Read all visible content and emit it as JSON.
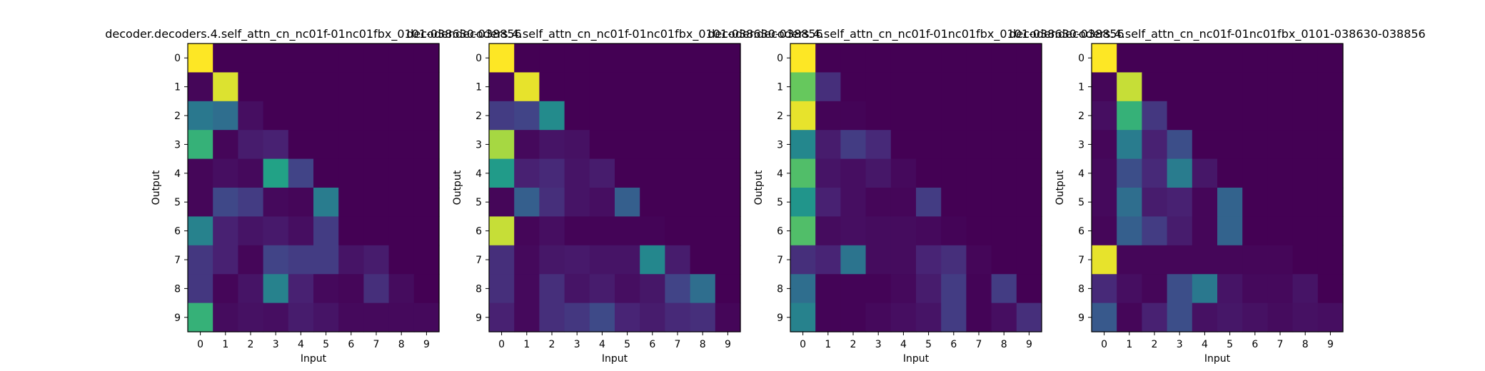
{
  "chart_data": [
    {
      "type": "heatmap",
      "title": "decoder.decoders.4.self_attn_cn_nc01f-01nc01fbx_0101-038630-038856",
      "xlabel": "Input",
      "ylabel": "Output",
      "x_ticks": [
        "0",
        "1",
        "2",
        "3",
        "4",
        "5",
        "6",
        "7",
        "8",
        "9"
      ],
      "y_ticks": [
        "0",
        "1",
        "2",
        "3",
        "4",
        "5",
        "6",
        "7",
        "8",
        "9"
      ],
      "colormap": "viridis",
      "vmin": 0,
      "vmax": 1,
      "values": [
        [
          1.0,
          0,
          0,
          0,
          0,
          0,
          0,
          0,
          0,
          0
        ],
        [
          0.02,
          0.97,
          0,
          0,
          0,
          0,
          0,
          0,
          0,
          0
        ],
        [
          0.5,
          0.45,
          0.05,
          0,
          0,
          0,
          0,
          0,
          0,
          0
        ],
        [
          0.78,
          0.02,
          0.1,
          0.12,
          0,
          0,
          0,
          0,
          0,
          0
        ],
        [
          0.02,
          0.05,
          0.03,
          0.72,
          0.25,
          0,
          0,
          0,
          0,
          0
        ],
        [
          0.02,
          0.27,
          0.22,
          0.03,
          0.02,
          0.52,
          0,
          0,
          0,
          0
        ],
        [
          0.55,
          0.12,
          0.07,
          0.09,
          0.05,
          0.22,
          0,
          0,
          0,
          0
        ],
        [
          0.2,
          0.12,
          0.02,
          0.25,
          0.22,
          0.22,
          0.07,
          0.1,
          0,
          0
        ],
        [
          0.2,
          0.02,
          0.07,
          0.55,
          0.12,
          0.03,
          0.02,
          0.17,
          0.04,
          0
        ],
        [
          0.78,
          0.04,
          0.06,
          0.05,
          0.1,
          0.07,
          0.03,
          0.03,
          0.03,
          0.03
        ]
      ]
    },
    {
      "type": "heatmap",
      "title": "decoder.decoders.4.self_attn_cn_nc01f-01nc01fbx_0101-038630-038856",
      "xlabel": "Input",
      "ylabel": "Output",
      "x_ticks": [
        "0",
        "1",
        "2",
        "3",
        "4",
        "5",
        "6",
        "7",
        "8",
        "9"
      ],
      "y_ticks": [
        "0",
        "1",
        "2",
        "3",
        "4",
        "5",
        "6",
        "7",
        "8",
        "9"
      ],
      "colormap": "viridis",
      "vmin": 0,
      "vmax": 1,
      "values": [
        [
          1.0,
          0,
          0,
          0,
          0,
          0,
          0,
          0,
          0,
          0
        ],
        [
          0.02,
          0.98,
          0,
          0,
          0,
          0,
          0,
          0,
          0,
          0
        ],
        [
          0.22,
          0.25,
          0.6,
          0,
          0,
          0,
          0,
          0,
          0,
          0
        ],
        [
          0.92,
          0.03,
          0.07,
          0.06,
          0,
          0,
          0,
          0,
          0,
          0
        ],
        [
          0.68,
          0.12,
          0.15,
          0.07,
          0.1,
          0,
          0,
          0,
          0,
          0
        ],
        [
          0.02,
          0.38,
          0.17,
          0.07,
          0.05,
          0.38,
          0,
          0,
          0,
          0
        ],
        [
          0.95,
          0.02,
          0.05,
          0.01,
          0.01,
          0.01,
          0.01,
          0,
          0,
          0
        ],
        [
          0.17,
          0.03,
          0.08,
          0.09,
          0.07,
          0.07,
          0.58,
          0.1,
          0,
          0
        ],
        [
          0.17,
          0.03,
          0.17,
          0.07,
          0.1,
          0.05,
          0.08,
          0.25,
          0.45,
          0
        ],
        [
          0.12,
          0.03,
          0.17,
          0.2,
          0.28,
          0.13,
          0.1,
          0.15,
          0.17,
          0.02
        ]
      ]
    },
    {
      "type": "heatmap",
      "title": "decoder.decoders.4.self_attn_cn_nc01f-01nc01fbx_0101-038630-038856",
      "xlabel": "Input",
      "ylabel": "Output",
      "x_ticks": [
        "0",
        "1",
        "2",
        "3",
        "4",
        "5",
        "6",
        "7",
        "8",
        "9"
      ],
      "y_ticks": [
        "0",
        "1",
        "2",
        "3",
        "4",
        "5",
        "6",
        "7",
        "8",
        "9"
      ],
      "colormap": "viridis",
      "vmin": 0,
      "vmax": 1,
      "values": [
        [
          1.0,
          0,
          0,
          0,
          0,
          0,
          0,
          0,
          0,
          0
        ],
        [
          0.85,
          0.17,
          0,
          0,
          0,
          0,
          0,
          0,
          0,
          0
        ],
        [
          0.98,
          0.01,
          0.01,
          0,
          0,
          0,
          0,
          0,
          0,
          0
        ],
        [
          0.58,
          0.1,
          0.22,
          0.15,
          0,
          0,
          0,
          0,
          0,
          0
        ],
        [
          0.82,
          0.07,
          0.05,
          0.08,
          0.03,
          0,
          0,
          0,
          0,
          0
        ],
        [
          0.65,
          0.12,
          0.05,
          0.02,
          0.02,
          0.22,
          0,
          0,
          0,
          0
        ],
        [
          0.82,
          0.04,
          0.05,
          0.04,
          0.04,
          0.03,
          0.01,
          0,
          0,
          0
        ],
        [
          0.17,
          0.13,
          0.48,
          0.04,
          0.04,
          0.13,
          0.17,
          0.02,
          0,
          0
        ],
        [
          0.45,
          0.01,
          0.01,
          0.01,
          0.03,
          0.1,
          0.22,
          0.01,
          0.22,
          0
        ],
        [
          0.55,
          0.01,
          0.01,
          0.03,
          0.05,
          0.07,
          0.22,
          0.01,
          0.05,
          0.17
        ]
      ]
    },
    {
      "type": "heatmap",
      "title": "decoder.decoders.4.self_attn_cn_nc01f-01nc01fbx_0101-038630-038856",
      "xlabel": "Input",
      "ylabel": "Output",
      "x_ticks": [
        "0",
        "1",
        "2",
        "3",
        "4",
        "5",
        "6",
        "7",
        "8",
        "9"
      ],
      "y_ticks": [
        "0",
        "1",
        "2",
        "3",
        "4",
        "5",
        "6",
        "7",
        "8",
        "9"
      ],
      "colormap": "viridis",
      "vmin": 0,
      "vmax": 1,
      "values": [
        [
          1.0,
          0,
          0,
          0,
          0,
          0,
          0,
          0,
          0,
          0
        ],
        [
          0.02,
          0.95,
          0,
          0,
          0,
          0,
          0,
          0,
          0,
          0
        ],
        [
          0.05,
          0.78,
          0.2,
          0,
          0,
          0,
          0,
          0,
          0,
          0
        ],
        [
          0.02,
          0.52,
          0.12,
          0.3,
          0,
          0,
          0,
          0,
          0,
          0
        ],
        [
          0.03,
          0.3,
          0.15,
          0.52,
          0.08,
          0,
          0,
          0,
          0,
          0
        ],
        [
          0.03,
          0.45,
          0.1,
          0.12,
          0.02,
          0.4,
          0,
          0,
          0,
          0
        ],
        [
          0.02,
          0.38,
          0.22,
          0.1,
          0.02,
          0.4,
          0,
          0,
          0,
          0
        ],
        [
          0.98,
          0.02,
          0.02,
          0.02,
          0.02,
          0.02,
          0.02,
          0.02,
          0,
          0
        ],
        [
          0.15,
          0.05,
          0.02,
          0.3,
          0.5,
          0.07,
          0.03,
          0.03,
          0.07,
          0
        ],
        [
          0.35,
          0.02,
          0.12,
          0.3,
          0.06,
          0.08,
          0.06,
          0.04,
          0.06,
          0.05
        ]
      ]
    }
  ]
}
